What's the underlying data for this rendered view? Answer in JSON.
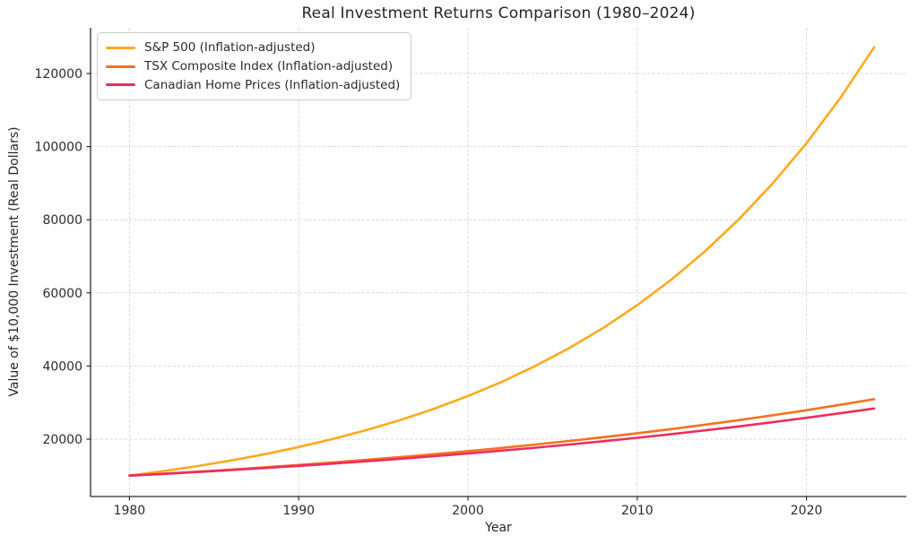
{
  "chart_data": {
    "type": "line",
    "title": "Real Investment Returns Comparison (1980–2024)",
    "xlabel": "Year",
    "ylabel": "Value of $10,000 Investment (Real Dollars)",
    "x": [
      1980,
      1982,
      1984,
      1986,
      1988,
      1990,
      1992,
      1994,
      1996,
      1998,
      2000,
      2002,
      2004,
      2006,
      2008,
      2010,
      2012,
      2014,
      2016,
      2018,
      2020,
      2022,
      2024
    ],
    "series": [
      {
        "name": "S&P 500 (Inflation-adjusted)",
        "color": "#FFA91E",
        "values": [
          10000,
          11225,
          12601,
          14145,
          15878,
          17824,
          20008,
          22460,
          25212,
          28301,
          31769,
          35662,
          40032,
          44937,
          50444,
          56625,
          63563,
          71352,
          80095,
          89910,
          100927,
          113295,
          127177
        ]
      },
      {
        "name": "TSX Composite Index (Inflation-adjusted)",
        "color": "#F4711F",
        "values": [
          10000,
          10527,
          11081,
          11665,
          12279,
          12926,
          13607,
          14323,
          15078,
          15872,
          16708,
          17588,
          18514,
          19489,
          20516,
          21596,
          22733,
          23931,
          25191,
          26518,
          27914,
          29384,
          30931
        ]
      },
      {
        "name": "Canadian Home Prices (Inflation-adjusted)",
        "color": "#EE2D5E",
        "values": [
          10000,
          10486,
          10995,
          11529,
          12089,
          12676,
          13292,
          13937,
          14614,
          15324,
          16068,
          16848,
          17667,
          18524,
          19424,
          20367,
          21356,
          22393,
          23480,
          24620,
          25815,
          27068,
          28382
        ]
      }
    ],
    "xticks": [
      1980,
      1990,
      2000,
      2010,
      2020
    ],
    "yticks": [
      20000,
      40000,
      60000,
      80000,
      100000,
      120000
    ],
    "xlim": [
      1977.7,
      2025.9
    ],
    "ylim": [
      4300,
      132500
    ],
    "grid": true,
    "grid_style": "dashed",
    "legend_position": "upper left"
  }
}
